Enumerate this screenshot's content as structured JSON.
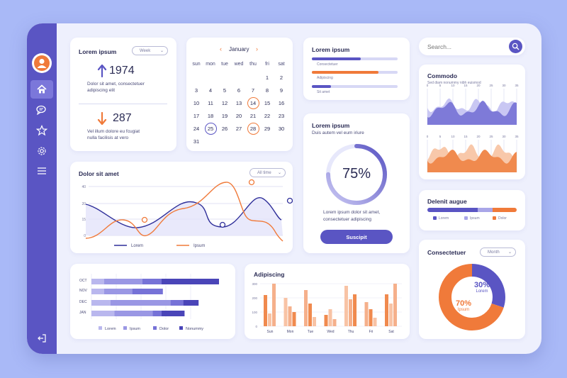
{
  "sidebar": {
    "items": [
      {
        "icon": "home-icon"
      },
      {
        "icon": "chat-icon"
      },
      {
        "icon": "star-icon"
      },
      {
        "icon": "gear-icon"
      },
      {
        "icon": "menu-icon"
      }
    ],
    "logout_icon": "logout-icon"
  },
  "stats": {
    "title": "Lorem ipsum",
    "period": "Week",
    "up_value": "1974",
    "up_text_1": "Dolor sit amet, consectetuer",
    "up_text_2": "adipiscing elit",
    "down_value": "287",
    "down_text_1": "Vel illum dolore eu fcugiat",
    "down_text_2": "nulla facilisis at vero"
  },
  "calendar": {
    "month": "January",
    "weekdays": [
      "sun",
      "mon",
      "tue",
      "wed",
      "thu",
      "fri",
      "sat"
    ],
    "weeks": [
      [
        "",
        "",
        "",
        "",
        "",
        "1",
        "2"
      ],
      [
        "3",
        "4",
        "5",
        "6",
        "7",
        "8",
        "9"
      ],
      [
        "10",
        "11",
        "12",
        "13",
        "14",
        "15",
        "16"
      ],
      [
        "17",
        "18",
        "19",
        "20",
        "21",
        "22",
        "23"
      ],
      [
        "24",
        "25",
        "26",
        "27",
        "28",
        "29",
        "30"
      ],
      [
        "31",
        "",
        "",
        "",
        "",
        "",
        ""
      ]
    ],
    "highlighted_orange": [
      "14",
      "28"
    ],
    "highlighted_purple": [
      "25"
    ]
  },
  "progress_card": {
    "title": "Lorem ipsum",
    "bars": [
      {
        "label": "Consectetuer",
        "value": 0.57,
        "color": "#5a55c3"
      },
      {
        "label": "Adipiscing",
        "value": 0.78,
        "color": "#f07a3a"
      },
      {
        "label": "Sit amet",
        "value": 0.22,
        "color": "#5a55c3"
      }
    ]
  },
  "gauge_card": {
    "title": "Lorem ipsum",
    "subtitle": "Duis autem vel eum iriure",
    "value_label": "75%",
    "value": 0.75,
    "text_1": "Lorem ipsum dolor sit amet,",
    "text_2": "consectetuer adipiscing",
    "button": "Suscipit"
  },
  "search": {
    "placeholder": "Search..."
  },
  "commodo": {
    "title": "Commodo",
    "subtitle": "Sed diam nonummy nibh euismod",
    "top_ticks": [
      "0",
      "5",
      "10",
      "15",
      "20",
      "25",
      "30",
      "35"
    ],
    "bottom_ticks": [
      "0",
      "5",
      "10",
      "15",
      "20",
      "25",
      "30",
      "35"
    ]
  },
  "delenit": {
    "title": "Delenit augue",
    "legend": [
      {
        "label": "Lorem",
        "color": "#5a55c3"
      },
      {
        "label": "Ipsum",
        "color": "#a9a6e8"
      },
      {
        "label": "Dolor",
        "color": "#f07a3a"
      }
    ],
    "segments": [
      0.56,
      0.17,
      0.27
    ]
  },
  "consectetuer": {
    "title": "Consectetuer",
    "period": "Month",
    "segments": [
      {
        "label": "Lorem",
        "value_label": "30%",
        "value": 0.3,
        "color": "#5a55c3"
      },
      {
        "label": "Ipsum",
        "value_label": "70%",
        "value": 0.7,
        "color": "#f07a3a"
      }
    ]
  },
  "line_chart": {
    "title": "Dolor sit amet",
    "period": "All time",
    "yticks": [
      "40",
      "20",
      "15",
      "0"
    ],
    "legend": [
      {
        "label": "Lorem",
        "color": "#2f2f9a"
      },
      {
        "label": "Ipsum",
        "color": "#f07a3a"
      }
    ]
  },
  "hbar_chart": {
    "categories": [
      "OCT",
      "NOV",
      "DEC",
      "JAN"
    ],
    "legend": [
      {
        "label": "Lorem",
        "color": "#b9b7ee"
      },
      {
        "label": "Ipsum",
        "color": "#9a97e4"
      },
      {
        "label": "Dolor",
        "color": "#7672d7"
      },
      {
        "label": "Nonummy",
        "color": "#4a45b8"
      }
    ],
    "rows": [
      [
        0.1,
        0.3,
        0.15,
        0.45
      ],
      [
        0.1,
        0.22,
        0.24,
        0
      ],
      [
        0.15,
        0.47,
        0.1,
        0.12
      ],
      [
        0.18,
        0.3,
        0.07,
        0.18
      ]
    ]
  },
  "adipiscing": {
    "title": "Adipiscing",
    "yticks": [
      "300",
      "200",
      "100",
      "0"
    ],
    "days": [
      "Sun",
      "Mon",
      "Tue",
      "Wed",
      "Thu",
      "Fri",
      "Sat"
    ]
  }
}
